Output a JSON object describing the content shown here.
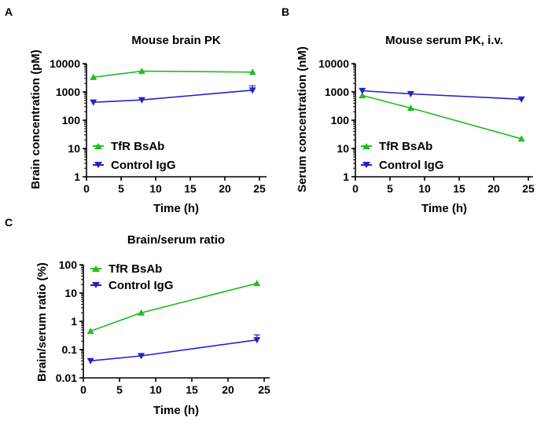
{
  "colors": {
    "tfr": "#22bb22",
    "control": "#2222cc"
  },
  "chart_data": [
    {
      "panel": "A",
      "type": "line",
      "title": "Mouse brain PK",
      "xlabel": "Time (h)",
      "ylabel": "Brain concentration (pM)",
      "xlim": [
        0,
        25
      ],
      "ylim": [
        1,
        10000
      ],
      "yscale": "log",
      "xticks": [
        "0",
        "5",
        "10",
        "15",
        "20",
        "25"
      ],
      "yticks": [
        "1",
        "10",
        "100",
        "1000",
        "10000"
      ],
      "legend": "bottom-left",
      "series": [
        {
          "name": "TfR BsAb",
          "color": "#22bb22",
          "marker": "triangle-up",
          "x": [
            1,
            8,
            24
          ],
          "y": [
            3300,
            5400,
            5000
          ]
        },
        {
          "name": "Control IgG",
          "color": "#2222cc",
          "marker": "triangle-down",
          "x": [
            1,
            8,
            24
          ],
          "y": [
            430,
            520,
            1150
          ],
          "err_upper": [
            0,
            0,
            1650
          ]
        }
      ]
    },
    {
      "panel": "B",
      "type": "line",
      "title": "Mouse serum PK, i.v.",
      "xlabel": "Time (h)",
      "ylabel": "Serum concentration (nM)",
      "xlim": [
        0,
        25
      ],
      "ylim": [
        1,
        10000
      ],
      "yscale": "log",
      "xticks": [
        "0",
        "5",
        "10",
        "15",
        "20",
        "25"
      ],
      "yticks": [
        "1",
        "10",
        "100",
        "1000",
        "10000"
      ],
      "legend": "bottom-left",
      "series": [
        {
          "name": "TfR BsAb",
          "color": "#22bb22",
          "marker": "triangle-up",
          "x": [
            1,
            8,
            24
          ],
          "y": [
            750,
            270,
            22
          ]
        },
        {
          "name": "Control IgG",
          "color": "#2222cc",
          "marker": "triangle-down",
          "x": [
            1,
            8,
            24
          ],
          "y": [
            1100,
            850,
            550
          ]
        }
      ]
    },
    {
      "panel": "C",
      "type": "line",
      "title": "Brain/serum ratio",
      "xlabel": "Time (h)",
      "ylabel": "Brain/serum ratio (%)",
      "xlim": [
        0,
        25
      ],
      "ylim": [
        0.01,
        100
      ],
      "yscale": "log",
      "xticks": [
        "0",
        "5",
        "10",
        "15",
        "20",
        "25"
      ],
      "yticks": [
        "0.01",
        "0.1",
        "1",
        "10",
        "100"
      ],
      "legend": "top-left",
      "series": [
        {
          "name": "TfR BsAb",
          "color": "#22bb22",
          "marker": "triangle-up",
          "x": [
            1,
            8,
            24
          ],
          "y": [
            0.45,
            2.0,
            22
          ]
        },
        {
          "name": "Control IgG",
          "color": "#2222cc",
          "marker": "triangle-down",
          "x": [
            1,
            8,
            24
          ],
          "y": [
            0.04,
            0.06,
            0.22
          ],
          "err_upper": [
            0,
            0,
            0.33
          ]
        }
      ]
    }
  ]
}
